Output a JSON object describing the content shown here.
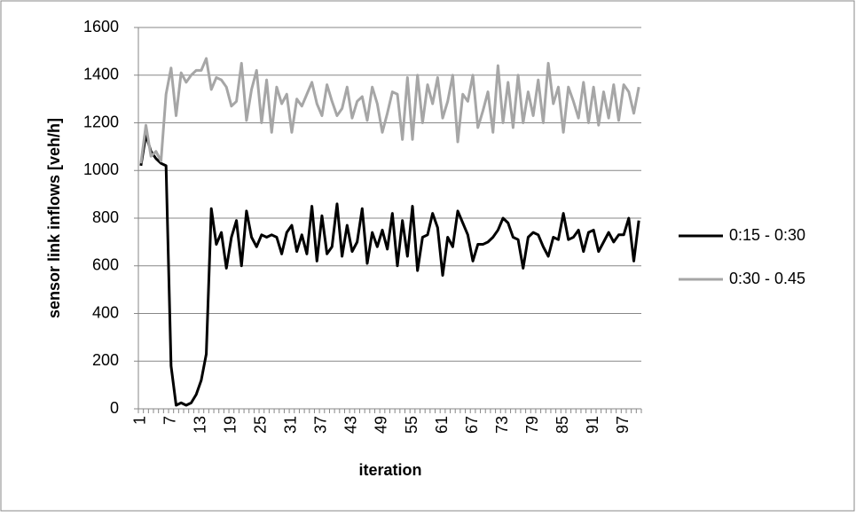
{
  "chart_data": {
    "type": "line",
    "y_label": "sensor link inflows [veh/h]",
    "x_label": "iteration",
    "categories": [
      1,
      null,
      null,
      null,
      null,
      null,
      7,
      null,
      null,
      null,
      null,
      null,
      13,
      null,
      null,
      null,
      null,
      null,
      19,
      null,
      null,
      null,
      null,
      null,
      25,
      null,
      null,
      null,
      null,
      null,
      31,
      null,
      null,
      null,
      null,
      null,
      37,
      null,
      null,
      null,
      null,
      null,
      43,
      null,
      null,
      null,
      null,
      null,
      49,
      null,
      null,
      null,
      null,
      null,
      55,
      null,
      null,
      null,
      null,
      null,
      61,
      null,
      null,
      null,
      null,
      null,
      67,
      null,
      null,
      null,
      null,
      null,
      73,
      null,
      null,
      null,
      null,
      null,
      79,
      null,
      null,
      null,
      null,
      null,
      85,
      null,
      null,
      null,
      null,
      null,
      91,
      null,
      null,
      null,
      null,
      null,
      97,
      null,
      null,
      null
    ],
    "series": [
      {
        "name": "0:15 - 0:30",
        "color": "#000000",
        "values": [
          1020,
          1150,
          1080,
          1050,
          1030,
          1020,
          180,
          15,
          25,
          15,
          25,
          60,
          120,
          230,
          840,
          690,
          740,
          590,
          720,
          790,
          600,
          830,
          720,
          680,
          730,
          720,
          730,
          720,
          650,
          740,
          770,
          660,
          730,
          650,
          850,
          620,
          810,
          650,
          680,
          860,
          640,
          770,
          660,
          700,
          840,
          610,
          740,
          680,
          750,
          670,
          820,
          600,
          790,
          640,
          850,
          580,
          720,
          730,
          820,
          760,
          560,
          720,
          680,
          830,
          780,
          730,
          620,
          690,
          690,
          700,
          720,
          750,
          800,
          780,
          720,
          710,
          590,
          720,
          740,
          730,
          680,
          640,
          720,
          710,
          820,
          710,
          720,
          750,
          660,
          740,
          750,
          660,
          700,
          740,
          700,
          730,
          730,
          800,
          620,
          790
        ]
      },
      {
        "name": "0:30 - 0.45",
        "color": "#a6a6a6",
        "values": [
          1030,
          1190,
          1060,
          1080,
          1040,
          1320,
          1430,
          1230,
          1410,
          1370,
          1400,
          1420,
          1420,
          1470,
          1340,
          1390,
          1380,
          1350,
          1270,
          1290,
          1450,
          1210,
          1340,
          1420,
          1200,
          1380,
          1160,
          1350,
          1280,
          1320,
          1160,
          1300,
          1270,
          1320,
          1370,
          1280,
          1230,
          1360,
          1290,
          1230,
          1260,
          1350,
          1220,
          1290,
          1310,
          1210,
          1350,
          1280,
          1160,
          1240,
          1330,
          1320,
          1130,
          1390,
          1130,
          1400,
          1200,
          1360,
          1280,
          1390,
          1220,
          1290,
          1400,
          1120,
          1320,
          1290,
          1400,
          1180,
          1250,
          1330,
          1160,
          1440,
          1200,
          1370,
          1180,
          1400,
          1200,
          1330,
          1230,
          1380,
          1200,
          1450,
          1280,
          1350,
          1160,
          1350,
          1290,
          1220,
          1370,
          1200,
          1350,
          1190,
          1330,
          1220,
          1360,
          1210,
          1360,
          1330,
          1240,
          1350
        ]
      }
    ],
    "ylim": [
      0,
      1600
    ],
    "yticks": [
      0,
      200,
      400,
      600,
      800,
      1000,
      1200,
      1400,
      1600
    ],
    "grid": true,
    "legend": "right"
  }
}
